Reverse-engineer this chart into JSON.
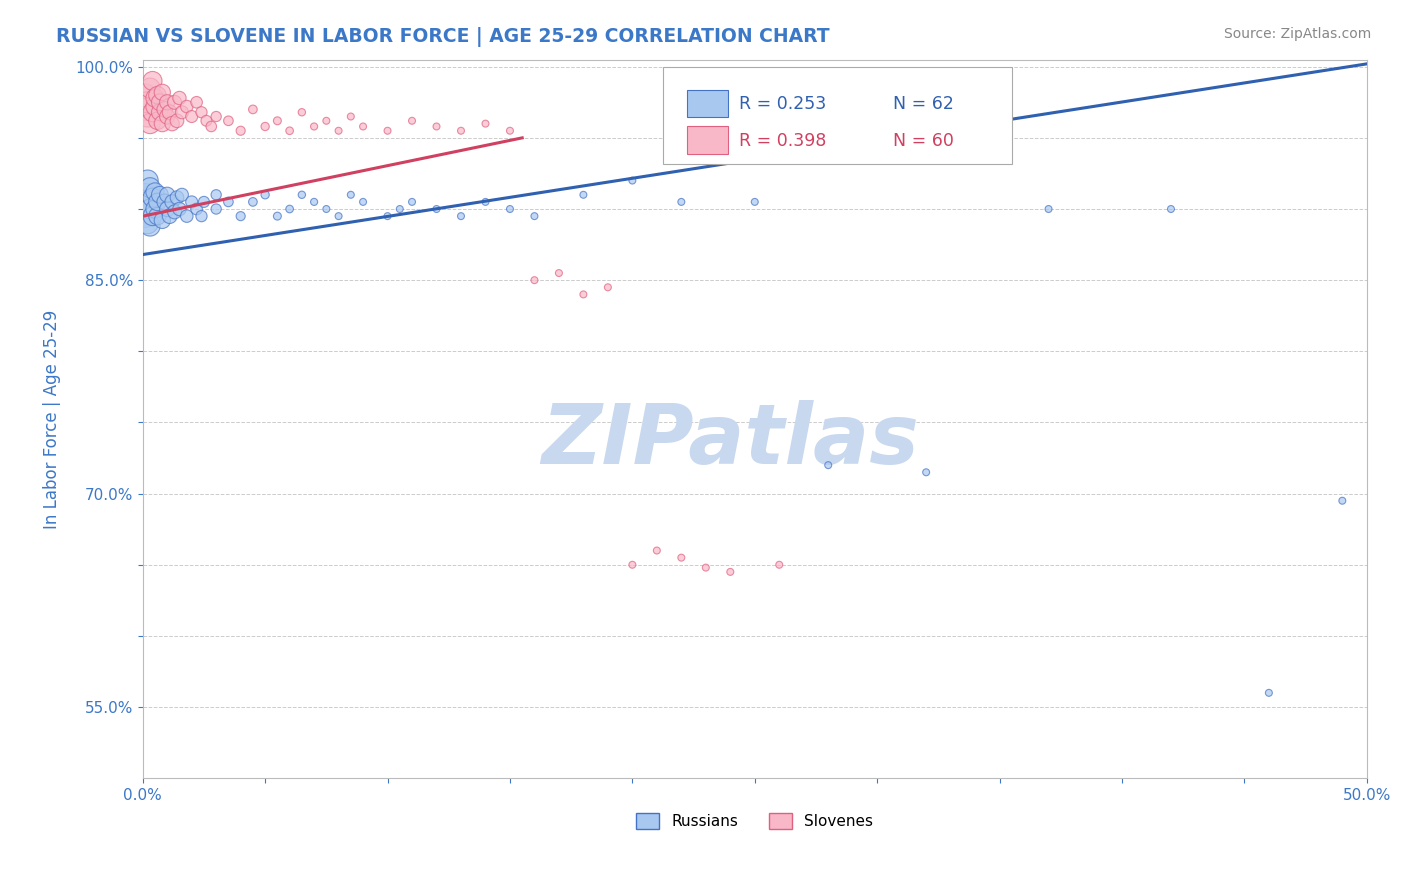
{
  "title": "RUSSIAN VS SLOVENE IN LABOR FORCE | AGE 25-29 CORRELATION CHART",
  "source_text": "Source: ZipAtlas.com",
  "ylabel": "In Labor Force | Age 25-29",
  "xlim": [
    0.0,
    0.5
  ],
  "ylim": [
    0.5,
    1.005
  ],
  "xticks": [
    0.0,
    0.05,
    0.1,
    0.15,
    0.2,
    0.25,
    0.3,
    0.35,
    0.4,
    0.45,
    0.5
  ],
  "xticklabels": [
    "0.0%",
    "",
    "",
    "",
    "",
    "",
    "",
    "",
    "",
    "",
    "50.0%"
  ],
  "ytick_positions": [
    0.55,
    0.6,
    0.65,
    0.7,
    0.75,
    0.8,
    0.85,
    0.9,
    0.95,
    1.0
  ],
  "ytick_labels": [
    "55.0%",
    "",
    "",
    "70.0%",
    "",
    "",
    "85.0%",
    "",
    "",
    "100.0%"
  ],
  "title_color": "#3c78c8",
  "axis_label_color": "#3c78c8",
  "tick_color": "#3c78c8",
  "grid_color": "#cccccc",
  "russian_fill": "#a8c8f0",
  "russian_edge": "#4472c4",
  "slovene_fill": "#f8b8c8",
  "slovene_edge": "#e06080",
  "russian_line_color": "#3060b0",
  "slovene_line_color": "#d04060",
  "legend_R_russian": "R = 0.253",
  "legend_N_russian": "N = 62",
  "legend_R_slovene": "R = 0.398",
  "legend_N_slovene": "N = 60",
  "watermark": "ZIPatlas",
  "watermark_color": "#c8d8ee",
  "rus_line_x": [
    0.0,
    0.5
  ],
  "rus_line_y": [
    0.868,
    1.002
  ],
  "slo_line_x": [
    0.0,
    0.155
  ],
  "slo_line_y": [
    0.895,
    0.95
  ]
}
